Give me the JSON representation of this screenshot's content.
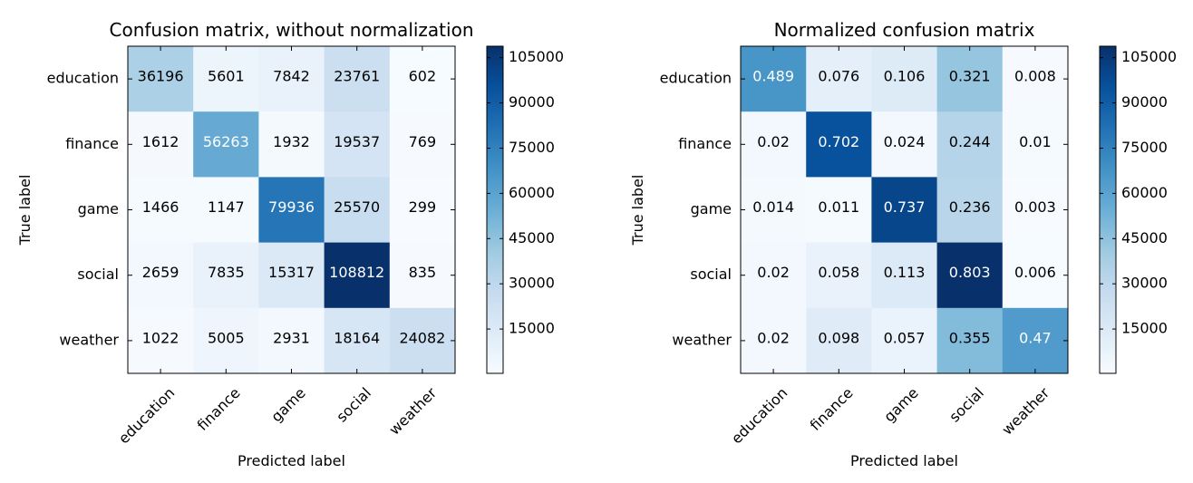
{
  "colormap": {
    "name": "Blues",
    "stops": [
      "#f7fbff",
      "#deebf7",
      "#c6dbef",
      "#9ecae1",
      "#6baed6",
      "#4292c6",
      "#2171b5",
      "#08519c",
      "#08306b"
    ]
  },
  "chart_data": [
    {
      "type": "heatmap",
      "title": "Confusion matrix, without normalization",
      "xlabel": "Predicted label",
      "ylabel": "True label",
      "x_categories": [
        "education",
        "finance",
        "game",
        "social",
        "weather"
      ],
      "y_categories": [
        "education",
        "finance",
        "game",
        "social",
        "weather"
      ],
      "values": [
        [
          36196,
          5601,
          7842,
          23761,
          602
        ],
        [
          1612,
          56263,
          1932,
          19537,
          769
        ],
        [
          1466,
          1147,
          79936,
          25570,
          299
        ],
        [
          2659,
          7835,
          15317,
          108812,
          835
        ],
        [
          1022,
          5005,
          2931,
          18164,
          24082
        ]
      ],
      "cell_labels": [
        [
          "36196",
          "5601",
          "7842",
          "23761",
          "602"
        ],
        [
          "1612",
          "56263",
          "1932",
          "19537",
          "769"
        ],
        [
          "1466",
          "1147",
          "79936",
          "25570",
          "299"
        ],
        [
          "2659",
          "7835",
          "15317",
          "108812",
          "835"
        ],
        [
          "1022",
          "5005",
          "2931",
          "18164",
          "24082"
        ]
      ],
      "colorbar": {
        "range": [
          299,
          108812
        ],
        "ticks": [
          15000,
          30000,
          45000,
          60000,
          75000,
          90000,
          105000
        ],
        "tick_labels": [
          "15000",
          "30000",
          "45000",
          "60000",
          "75000",
          "90000",
          "105000"
        ]
      }
    },
    {
      "type": "heatmap",
      "title": "Normalized confusion matrix",
      "xlabel": "Predicted label",
      "ylabel": "True label",
      "x_categories": [
        "education",
        "finance",
        "game",
        "social",
        "weather"
      ],
      "y_categories": [
        "education",
        "finance",
        "game",
        "social",
        "weather"
      ],
      "values": [
        [
          0.489,
          0.076,
          0.106,
          0.321,
          0.008
        ],
        [
          0.02,
          0.702,
          0.024,
          0.244,
          0.01
        ],
        [
          0.014,
          0.011,
          0.737,
          0.236,
          0.003
        ],
        [
          0.02,
          0.058,
          0.113,
          0.803,
          0.006
        ],
        [
          0.02,
          0.098,
          0.057,
          0.355,
          0.47
        ]
      ],
      "cell_labels": [
        [
          "0.489",
          "0.076",
          "0.106",
          "0.321",
          "0.008"
        ],
        [
          "0.02",
          "0.702",
          "0.024",
          "0.244",
          "0.01"
        ],
        [
          "0.014",
          "0.011",
          "0.737",
          "0.236",
          "0.003"
        ],
        [
          "0.02",
          "0.058",
          "0.113",
          "0.803",
          "0.006"
        ],
        [
          "0.02",
          "0.098",
          "0.057",
          "0.355",
          "0.47"
        ]
      ],
      "colorbar": {
        "range": [
          299,
          108812
        ],
        "ticks": [
          15000,
          30000,
          45000,
          60000,
          75000,
          90000,
          105000
        ],
        "tick_labels": [
          "15000",
          "30000",
          "45000",
          "60000",
          "75000",
          "90000",
          "105000"
        ]
      }
    }
  ]
}
